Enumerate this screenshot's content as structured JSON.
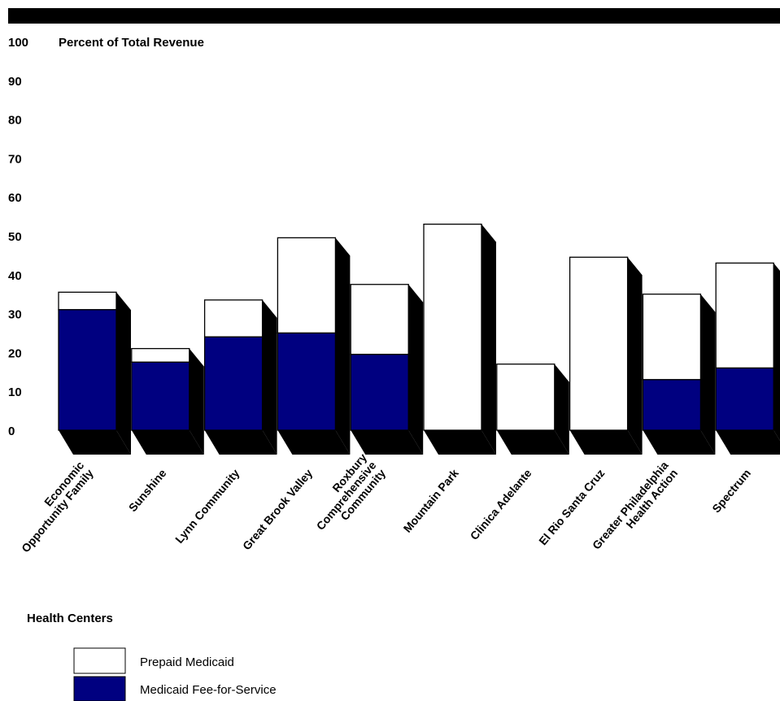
{
  "chart_data": {
    "type": "bar",
    "stacked": true,
    "three_d": true,
    "ylabel": "Percent of Total Revenue",
    "xlabel": "Health Centers",
    "ylim": [
      0,
      100
    ],
    "yticks": [
      0,
      10,
      20,
      30,
      40,
      50,
      60,
      70,
      80,
      90,
      100
    ],
    "grid": false,
    "legend_position": "bottom-left",
    "categories": [
      [
        "Economic",
        "Opportunity Family"
      ],
      [
        "Sunshine"
      ],
      [
        "Lynn Community"
      ],
      [
        "Great Brook Valley"
      ],
      [
        "Roxbury",
        "Comprehensive",
        "Community"
      ],
      [
        "Mountain Park"
      ],
      [
        "Clinica Adelante"
      ],
      [
        "El Rio Santa Cruz"
      ],
      [
        "Greater Philadelphia",
        "Health Action"
      ],
      [
        "Spectrum"
      ]
    ],
    "series": [
      {
        "name": "Medicaid Fee-for-Service",
        "color": "#000080",
        "values": [
          31,
          17.5,
          24,
          25,
          19.5,
          0,
          0,
          0,
          13,
          16
        ]
      },
      {
        "name": "Prepaid Medicaid",
        "color": "#ffffff",
        "values": [
          4.5,
          3.5,
          9.5,
          24.5,
          18,
          53,
          17,
          44.5,
          22,
          27
        ]
      }
    ]
  }
}
